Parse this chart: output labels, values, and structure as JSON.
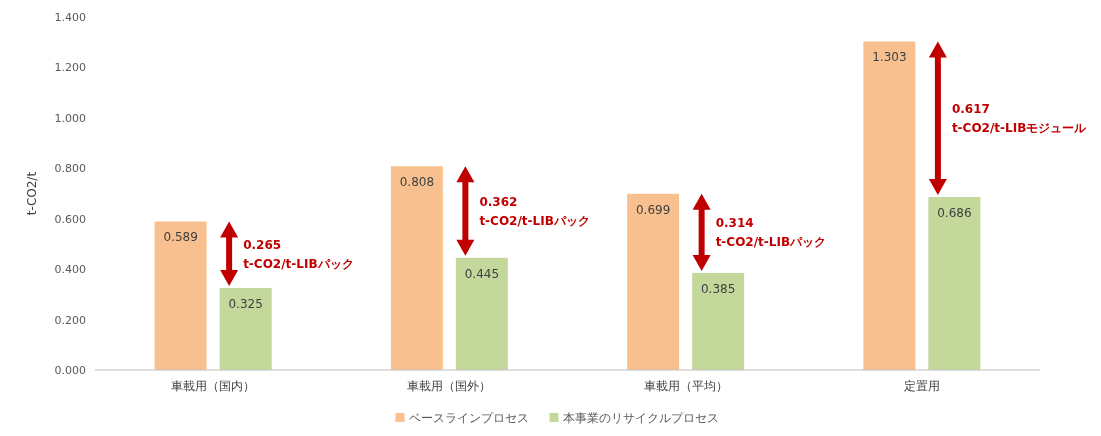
{
  "chart_data": {
    "type": "bar",
    "ylabel": "t-CO2/t",
    "categories": [
      "車載用（国内）",
      "車載用（国外）",
      "車載用（平均）",
      "定置用"
    ],
    "series": [
      {
        "name": "ベースラインプロセス",
        "color": "#f9c08f",
        "values": [
          0.589,
          0.808,
          0.699,
          1.303
        ]
      },
      {
        "name": "本事業のリサイクルプロセス",
        "color": "#c4d89b",
        "values": [
          0.325,
          0.445,
          0.385,
          0.686
        ]
      }
    ],
    "ylim": [
      0,
      1.4
    ],
    "yticks": [
      {
        "value": 0,
        "label": "0.000"
      },
      {
        "value": 0.2,
        "label": "0.200"
      },
      {
        "value": 0.4,
        "label": "0.400"
      },
      {
        "value": 0.6,
        "label": "0.600"
      },
      {
        "value": 0.8,
        "label": "0.800"
      },
      {
        "value": 1.0,
        "label": "1.000"
      },
      {
        "value": 1.2,
        "label": "1.200"
      },
      {
        "value": 1.4,
        "label": "1.400"
      }
    ],
    "data_labels": true,
    "grid": false,
    "legend": "bottom",
    "annotations": [
      "0.265\nt-CO2/t-LIBパック",
      "0.362\nt-CO2/t-LIBパック",
      "0.314\nt-CO2/t-LIBパック",
      "0.617\nt-CO2/t-LIBモジュール"
    ]
  }
}
